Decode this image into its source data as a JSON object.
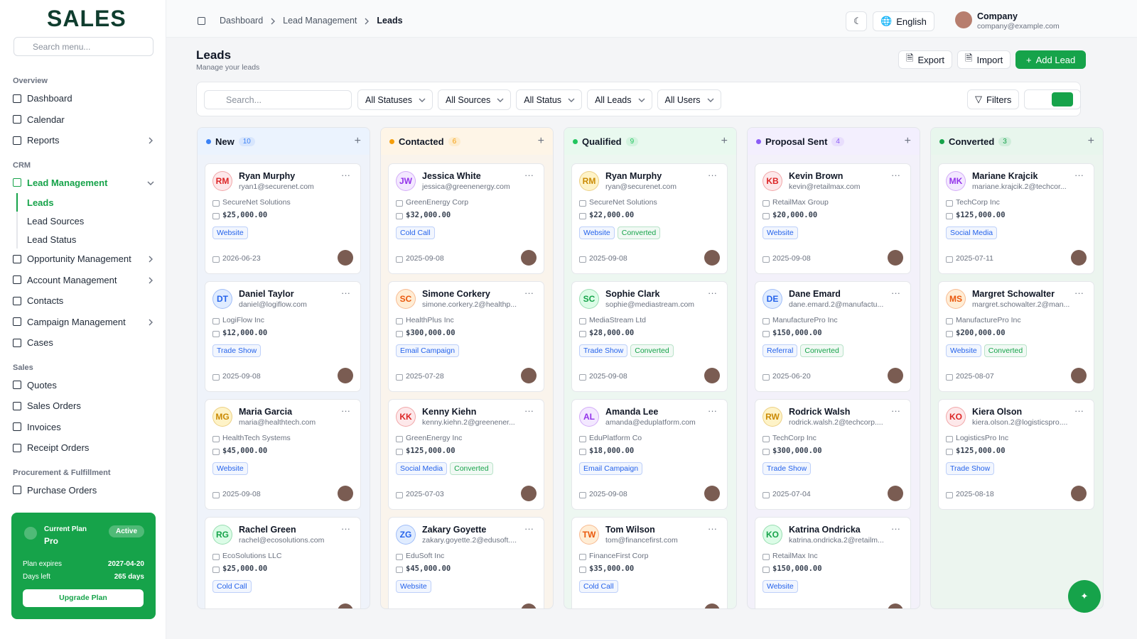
{
  "sidebar": {
    "logo": "SALES",
    "search_placeholder": "Search menu...",
    "sections": [
      {
        "title": "Overview",
        "items": [
          {
            "label": "Dashboard"
          },
          {
            "label": "Calendar"
          },
          {
            "label": "Reports",
            "submenu": true
          }
        ]
      },
      {
        "title": "CRM",
        "items": [
          {
            "label": "Lead Management",
            "active": true,
            "expanded": true,
            "children": [
              {
                "label": "Leads",
                "active": true
              },
              {
                "label": "Lead Sources"
              },
              {
                "label": "Lead Status"
              }
            ]
          },
          {
            "label": "Opportunity Management",
            "submenu": true
          },
          {
            "label": "Account Management",
            "submenu": true
          },
          {
            "label": "Contacts"
          },
          {
            "label": "Campaign Management",
            "submenu": true
          },
          {
            "label": "Cases"
          }
        ]
      },
      {
        "title": "Sales",
        "items": [
          {
            "label": "Quotes"
          },
          {
            "label": "Sales Orders"
          },
          {
            "label": "Invoices"
          },
          {
            "label": "Receipt Orders"
          }
        ]
      },
      {
        "title": "Procurement & Fulfillment",
        "items": [
          {
            "label": "Purchase Orders"
          }
        ]
      }
    ],
    "plan": {
      "label": "Current Plan",
      "name": "Pro",
      "status": "Active",
      "expires_label": "Plan expires",
      "expires": "2027-04-20",
      "days_label": "Days left",
      "days": "265 days",
      "button": "Upgrade Plan"
    }
  },
  "header": {
    "breadcrumbs": [
      "Dashboard",
      "Lead Management",
      "Leads"
    ],
    "language": "English",
    "company": "Company",
    "email": "company@example.com"
  },
  "page": {
    "title": "Leads",
    "subtitle": "Manage your leads",
    "actions": [
      "Export",
      "Import",
      "Add Lead"
    ]
  },
  "filters": {
    "search_placeholder": "Search...",
    "dropdowns": [
      "All Statuses",
      "All Sources",
      "All Status",
      "All Leads",
      "All Users"
    ],
    "button": "Filters"
  },
  "columns": [
    {
      "title": "New",
      "count": 10,
      "color": "#3b82f6",
      "cards": [
        {
          "initials": "RM",
          "name": "Ryan Murphy",
          "email": "ryan1@securenet.com",
          "company": "SecureNet Solutions",
          "amount": "$25,000.00",
          "tags": [
            {
              "text": "Website",
              "color": "#2563eb"
            }
          ],
          "date": "2026-06-23"
        },
        {
          "initials": "DT",
          "name": "Daniel Taylor",
          "email": "daniel@logiflow.com",
          "company": "LogiFlow Inc",
          "amount": "$12,000.00",
          "tags": [
            {
              "text": "Trade Show",
              "color": "#2563eb"
            }
          ],
          "date": "2025-09-08"
        },
        {
          "initials": "MG",
          "name": "Maria Garcia",
          "email": "maria@healthtech.com",
          "company": "HealthTech Systems",
          "amount": "$45,000.00",
          "tags": [
            {
              "text": "Website",
              "color": "#2563eb"
            }
          ],
          "date": "2025-09-08"
        },
        {
          "initials": "RG",
          "name": "Rachel Green",
          "email": "rachel@ecosolutions.com",
          "company": "EcoSolutions LLC",
          "amount": "$25,000.00",
          "tags": [
            {
              "text": "Cold Call",
              "color": "#2563eb"
            }
          ]
        }
      ]
    },
    {
      "title": "Contacted",
      "count": 6,
      "color": "#f59e0b",
      "cards": [
        {
          "initials": "JW",
          "name": "Jessica White",
          "email": "jessica@greenenergy.com",
          "company": "GreenEnergy Corp",
          "amount": "$32,000.00",
          "tags": [
            {
              "text": "Cold Call",
              "color": "#2563eb"
            }
          ],
          "date": "2025-09-08"
        },
        {
          "initials": "SC",
          "name": "Simone Corkery",
          "email": "simone.corkery.2@healthp...",
          "company": "HealthPlus Inc",
          "amount": "$300,000.00",
          "tags": [
            {
              "text": "Email Campaign",
              "color": "#2563eb"
            }
          ],
          "date": "2025-07-28"
        },
        {
          "initials": "KK",
          "name": "Kenny Kiehn",
          "email": "kenny.kiehn.2@greenener...",
          "company": "GreenEnergy Inc",
          "amount": "$125,000.00",
          "tags": [
            {
              "text": "Social Media",
              "color": "#2563eb"
            },
            {
              "text": "Converted",
              "color": "#16a34a"
            }
          ],
          "date": "2025-07-03"
        },
        {
          "initials": "ZG",
          "name": "Zakary Goyette",
          "email": "zakary.goyette.2@edusoft....",
          "company": "EduSoft Inc",
          "amount": "$45,000.00",
          "tags": [
            {
              "text": "Website",
              "color": "#2563eb"
            }
          ]
        }
      ]
    },
    {
      "title": "Qualified",
      "count": 9,
      "color": "#22c55e",
      "cards": [
        {
          "initials": "RM",
          "name": "Ryan Murphy",
          "email": "ryan@securenet.com",
          "company": "SecureNet Solutions",
          "amount": "$22,000.00",
          "tags": [
            {
              "text": "Website",
              "color": "#2563eb"
            },
            {
              "text": "Converted",
              "color": "#16a34a"
            }
          ],
          "date": "2025-09-08"
        },
        {
          "initials": "SC",
          "name": "Sophie Clark",
          "email": "sophie@mediastream.com",
          "company": "MediaStream Ltd",
          "amount": "$28,000.00",
          "tags": [
            {
              "text": "Trade Show",
              "color": "#2563eb"
            },
            {
              "text": "Converted",
              "color": "#16a34a"
            }
          ],
          "date": "2025-09-08"
        },
        {
          "initials": "AL",
          "name": "Amanda Lee",
          "email": "amanda@eduplatform.com",
          "company": "EduPlatform Co",
          "amount": "$18,000.00",
          "tags": [
            {
              "text": "Email Campaign",
              "color": "#2563eb"
            }
          ],
          "date": "2025-09-08"
        },
        {
          "initials": "TW",
          "name": "Tom Wilson",
          "email": "tom@financefirst.com",
          "company": "FinanceFirst Corp",
          "amount": "$35,000.00",
          "tags": [
            {
              "text": "Cold Call",
              "color": "#2563eb"
            }
          ]
        }
      ]
    },
    {
      "title": "Proposal Sent",
      "count": 4,
      "color": "#8b5cf6",
      "cards": [
        {
          "initials": "KB",
          "name": "Kevin Brown",
          "email": "kevin@retailmax.com",
          "company": "RetailMax Group",
          "amount": "$20,000.00",
          "tags": [
            {
              "text": "Website",
              "color": "#2563eb"
            }
          ],
          "date": "2025-09-08"
        },
        {
          "initials": "DE",
          "name": "Dane Emard",
          "email": "dane.emard.2@manufactu...",
          "company": "ManufacturePro Inc",
          "amount": "$150,000.00",
          "tags": [
            {
              "text": "Referral",
              "color": "#2563eb"
            },
            {
              "text": "Converted",
              "color": "#16a34a"
            }
          ],
          "date": "2025-06-20"
        },
        {
          "initials": "RW",
          "name": "Rodrick Walsh",
          "email": "rodrick.walsh.2@techcorp....",
          "company": "TechCorp Inc",
          "amount": "$300,000.00",
          "tags": [
            {
              "text": "Trade Show",
              "color": "#2563eb"
            }
          ],
          "date": "2025-07-04"
        },
        {
          "initials": "KO",
          "name": "Katrina Ondricka",
          "email": "katrina.ondricka.2@retailm...",
          "company": "RetailMax Inc",
          "amount": "$150,000.00",
          "tags": [
            {
              "text": "Website",
              "color": "#2563eb"
            }
          ]
        }
      ]
    },
    {
      "title": "Converted",
      "count": 3,
      "color": "#16a34a",
      "cards": [
        {
          "initials": "MK",
          "name": "Mariane Krajcik",
          "email": "mariane.krajcik.2@techcor...",
          "company": "TechCorp Inc",
          "amount": "$125,000.00",
          "tags": [
            {
              "text": "Social Media",
              "color": "#2563eb"
            }
          ],
          "date": "2025-07-11"
        },
        {
          "initials": "MS",
          "name": "Margret Schowalter",
          "email": "margret.schowalter.2@man...",
          "company": "ManufacturePro Inc",
          "amount": "$200,000.00",
          "tags": [
            {
              "text": "Website",
              "color": "#2563eb"
            },
            {
              "text": "Converted",
              "color": "#16a34a"
            }
          ],
          "date": "2025-08-07"
        },
        {
          "initials": "KO",
          "name": "Kiera Olson",
          "email": "kiera.olson.2@logisticspro....",
          "company": "LogisticsPro Inc",
          "amount": "$125,000.00",
          "tags": [
            {
              "text": "Trade Show",
              "color": "#2563eb"
            }
          ],
          "date": "2025-08-18"
        }
      ]
    }
  ]
}
